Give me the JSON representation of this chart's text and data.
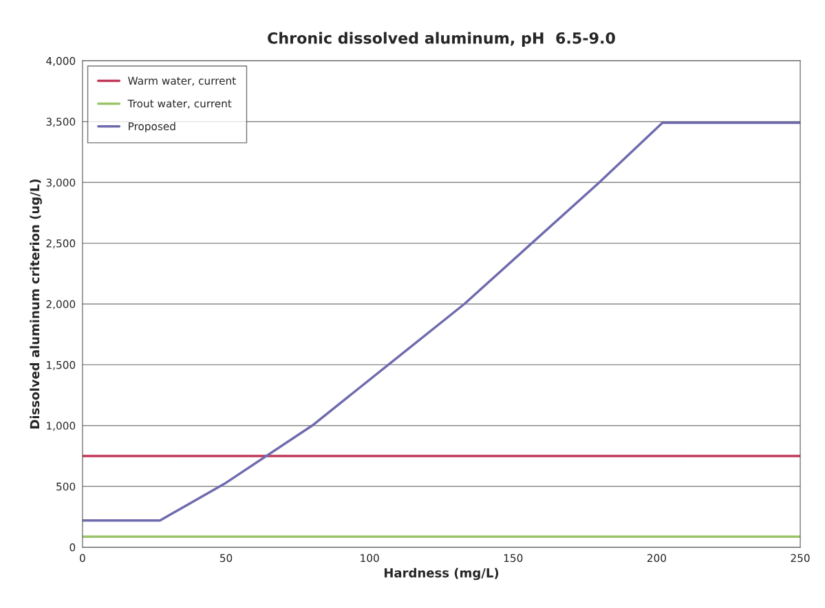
{
  "chart_data": {
    "type": "line",
    "title": "Chronic dissolved aluminum, pH  6.5-9.0",
    "xlabel": "Hardness (mg/L)",
    "ylabel": "Dissolved aluminum criterion (ug/L)",
    "series": [
      {
        "name": "Warm water, current",
        "color": "#c0395a",
        "x": [
          0,
          250
        ],
        "values": [
          750,
          750
        ]
      },
      {
        "name": "Trout water, current",
        "color": "#9bc46a",
        "x": [
          0,
          250
        ],
        "values": [
          87,
          87
        ]
      },
      {
        "name": "Proposed",
        "color": "#6e6aae",
        "x": [
          0,
          27,
          50,
          80,
          133,
          180,
          202,
          250
        ],
        "values": [
          220,
          220,
          530,
          1000,
          2000,
          3000,
          3490,
          3490
        ]
      }
    ],
    "xlim": [
      0,
      250
    ],
    "xticks": [
      0,
      50,
      100,
      150,
      200,
      250
    ],
    "ylim": [
      0,
      4000
    ],
    "yticks": [
      0,
      500,
      {
        "value": 1000,
        "label": "1,000"
      },
      {
        "value": 1500,
        "label": "1,500"
      },
      {
        "value": 2000,
        "label": "2,000"
      },
      {
        "value": 2500,
        "label": "2,500"
      },
      {
        "value": 3000,
        "label": "3,000"
      },
      {
        "value": 3500,
        "label": "3,500"
      },
      {
        "value": 4000,
        "label": "4,000"
      }
    ],
    "grid": "y",
    "legend": "top left",
    "marker": "none",
    "line_style": "solid"
  }
}
